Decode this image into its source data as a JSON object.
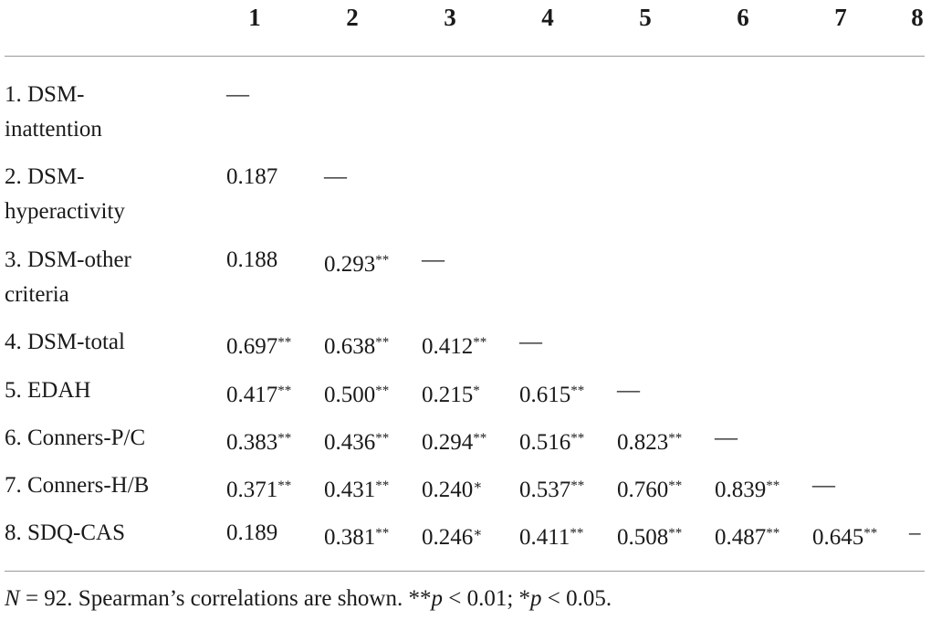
{
  "table": {
    "header": [
      "1",
      "2",
      "3",
      "4",
      "5",
      "6",
      "7",
      "8"
    ],
    "rows": [
      {
        "label": "1. DSM-inattention",
        "cells": [
          {
            "r": "—"
          }
        ]
      },
      {
        "label": "2. DSM-hyperactivity",
        "cells": [
          {
            "r": "0.187"
          },
          {
            "r": "—"
          }
        ]
      },
      {
        "label": "3. DSM-other criteria",
        "cells": [
          {
            "r": "0.188"
          },
          {
            "r": "0.293",
            "sig": "**"
          },
          {
            "r": "—"
          }
        ]
      },
      {
        "label": "4. DSM-total",
        "cells": [
          {
            "r": "0.697",
            "sig": "**"
          },
          {
            "r": "0.638",
            "sig": "**"
          },
          {
            "r": "0.412",
            "sig": "**"
          },
          {
            "r": "—"
          }
        ]
      },
      {
        "label": "5. EDAH",
        "cells": [
          {
            "r": "0.417",
            "sig": "**"
          },
          {
            "r": "0.500",
            "sig": "**"
          },
          {
            "r": "0.215",
            "sig": "*"
          },
          {
            "r": "0.615",
            "sig": "**"
          },
          {
            "r": "—"
          }
        ]
      },
      {
        "label": "6. Conners-P/C",
        "cells": [
          {
            "r": "0.383",
            "sig": "**"
          },
          {
            "r": "0.436",
            "sig": "**"
          },
          {
            "r": "0.294",
            "sig": "**"
          },
          {
            "r": "0.516",
            "sig": "**"
          },
          {
            "r": "0.823",
            "sig": "**"
          },
          {
            "r": "—"
          }
        ]
      },
      {
        "label": "7. Conners-H/B",
        "cells": [
          {
            "r": "0.371",
            "sig": "**"
          },
          {
            "r": "0.431",
            "sig": "**"
          },
          {
            "r": "0.240",
            "sig": "∗"
          },
          {
            "r": "0.537",
            "sig": "**"
          },
          {
            "r": "0.760",
            "sig": "**"
          },
          {
            "r": "0.839",
            "sig": "**"
          },
          {
            "r": "—"
          }
        ]
      },
      {
        "label": "8. SDQ-CAS",
        "cells": [
          {
            "r": "0.189"
          },
          {
            "r": "0.381",
            "sig": "**"
          },
          {
            "r": "0.246",
            "sig": "∗"
          },
          {
            "r": "0.411",
            "sig": "**"
          },
          {
            "r": "0.508",
            "sig": "**"
          },
          {
            "r": "0.487",
            "sig": "**"
          },
          {
            "r": "0.645",
            "sig": "**"
          },
          {
            "r": "–"
          }
        ]
      }
    ],
    "footnote": [
      "N",
      " = 92. Spearman’s correlations are shown. **",
      "p",
      " < 0.01; *",
      "p",
      " < 0.05."
    ]
  }
}
